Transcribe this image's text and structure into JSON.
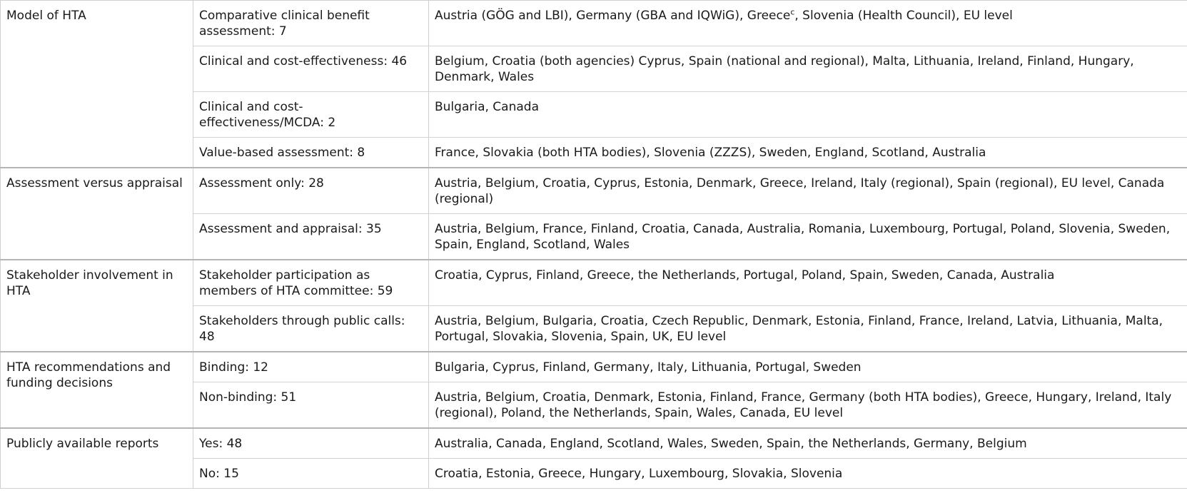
{
  "table": {
    "groups": [
      {
        "category": "Model of HTA",
        "rows": [
          {
            "option": "Comparative clinical benefit assessment: 7",
            "countries": "Austria (GÖG and LBI), Germany (GBA and IQWiG), Greece",
            "countries_sup": "c",
            "countries_after": ", Slovenia (Health Council), EU level"
          },
          {
            "option": "Clinical and cost-effectiveness: 46",
            "countries": "Belgium, Croatia (both agencies) Cyprus, Spain (national and regional), Malta, Lithuania, Ireland, Finland, Hungary, Denmark, Wales"
          },
          {
            "option": "Clinical and cost-effectiveness/MCDA: 2",
            "countries": "Bulgaria, Canada"
          },
          {
            "option": "Value-based assessment: 8",
            "countries": "France, Slovakia (both HTA bodies), Slovenia (ZZZS), Sweden, England, Scotland, Australia"
          }
        ]
      },
      {
        "category": "Assessment versus appraisal",
        "rows": [
          {
            "option": "Assessment only: 28",
            "countries": "Austria, Belgium, Croatia, Cyprus, Estonia, Denmark, Greece, Ireland, Italy (regional), Spain (regional), EU level, Canada (regional)"
          },
          {
            "option": "Assessment and appraisal: 35",
            "countries": "Austria, Belgium, France, Finland, Croatia, Canada, Australia, Romania, Luxembourg, Portugal, Poland, Slovenia, Sweden, Spain, England, Scotland, Wales"
          }
        ]
      },
      {
        "category": "Stakeholder involvement in HTA",
        "rows": [
          {
            "option": "Stakeholder participation as members of HTA committee: 59",
            "countries": "Croatia, Cyprus, Finland, Greece, the Netherlands, Portugal, Poland, Spain, Sweden, Canada, Australia"
          },
          {
            "option": "Stakeholders through public calls: 48",
            "countries": "Austria, Belgium, Bulgaria, Croatia, Czech Republic, Denmark, Estonia, Finland, France, Ireland, Latvia, Lithuania, Malta, Portugal, Slovakia, Slovenia, Spain, UK, EU level"
          }
        ]
      },
      {
        "category": "HTA recommendations and funding decisions",
        "rows": [
          {
            "option": "Binding: 12",
            "countries": "Bulgaria, Cyprus, Finland, Germany, Italy, Lithuania, Portugal, Sweden"
          },
          {
            "option": "Non-binding: 51",
            "countries": "Austria, Belgium, Croatia, Denmark, Estonia, Finland, France, Germany (both HTA bodies), Greece, Hungary, Ireland, Italy (regional), Poland, the Netherlands, Spain, Wales, Canada, EU level"
          }
        ]
      },
      {
        "category": "Publicly available reports",
        "rows": [
          {
            "option": "Yes: 48",
            "countries": "Australia, Canada, England, Scotland, Wales, Sweden, Spain, the Netherlands, Germany, Belgium"
          },
          {
            "option": "No: 15",
            "countries": "Croatia, Estonia, Greece, Hungary, Luxembourg, Slovakia, Slovenia"
          }
        ]
      }
    ]
  }
}
